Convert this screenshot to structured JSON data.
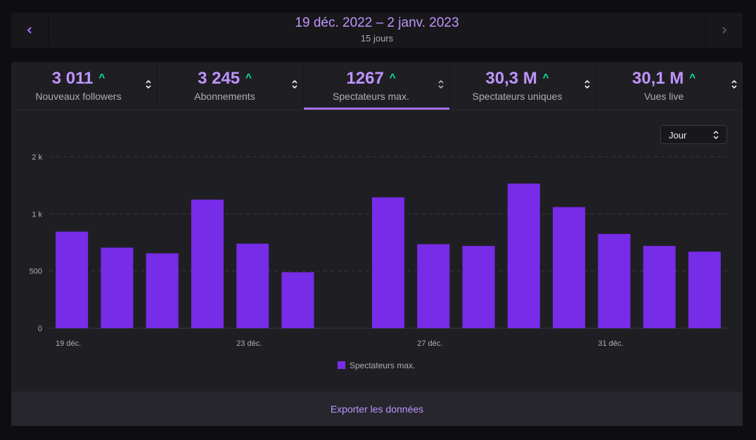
{
  "date_nav": {
    "range": "19 déc. 2022 – 2 janv. 2023",
    "days": "15 jours"
  },
  "tabs": [
    {
      "value": "3 011",
      "label": "Nouveaux followers",
      "trend": "^",
      "active": false
    },
    {
      "value": "3 245",
      "label": "Abonnements",
      "trend": "^",
      "active": false
    },
    {
      "value": "1267",
      "label": "Spectateurs max.",
      "trend": "^",
      "active": true
    },
    {
      "value": "30,3 M",
      "label": "Spectateurs uniques",
      "trend": "^",
      "active": false
    },
    {
      "value": "30,1 M",
      "label": "Vues live",
      "trend": "^",
      "active": false
    }
  ],
  "granularity": {
    "selected": "Jour"
  },
  "chart_data": {
    "type": "bar",
    "categories": [
      "19 déc.",
      "20 déc.",
      "21 déc.",
      "22 déc.",
      "23 déc.",
      "24 déc.",
      "25 déc.",
      "26 déc.",
      "27 déc.",
      "28 déc.",
      "29 déc.",
      "30 déc.",
      "31 déc.",
      "1 janv.",
      "2 janv."
    ],
    "x_tick_labels": [
      {
        "index": 0,
        "label": "19 déc."
      },
      {
        "index": 4,
        "label": "23 déc."
      },
      {
        "index": 8,
        "label": "27 déc."
      },
      {
        "index": 12,
        "label": "31 déc."
      }
    ],
    "series": [
      {
        "name": "Spectateurs max.",
        "color": "#772ce8",
        "values": [
          845,
          705,
          655,
          1125,
          740,
          490,
          0,
          1145,
          735,
          720,
          1265,
          1060,
          825,
          720,
          670
        ]
      }
    ],
    "y_ticks": [
      {
        "value": 0,
        "label": "0"
      },
      {
        "value": 500,
        "label": "500"
      },
      {
        "value": 1000,
        "label": "1 k"
      },
      {
        "value": 1500,
        "label": "2 k"
      }
    ],
    "ylim": [
      0,
      1500
    ],
    "grid": true,
    "legend_position": "bottom-center"
  },
  "footer": {
    "export_label": "Exporter les données"
  },
  "colors": {
    "accent": "#a970ff",
    "accent_text": "#bf94ff",
    "bar": "#772ce8",
    "trend_up": "#00f593",
    "panel_bg": "#1f1f23",
    "page_bg": "#0e0e10"
  }
}
